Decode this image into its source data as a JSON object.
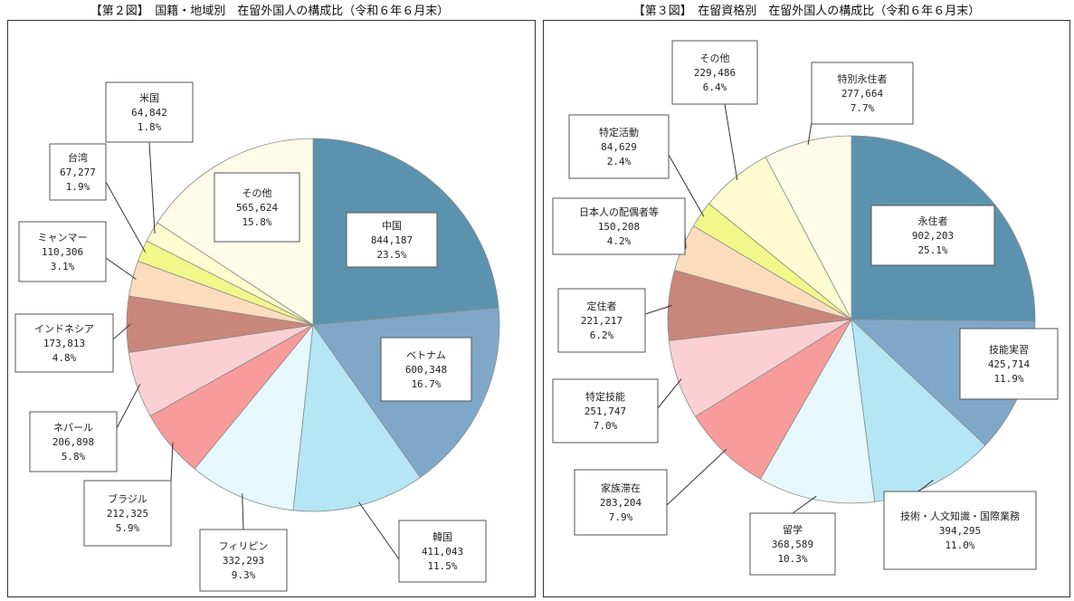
{
  "chart_data": [
    {
      "type": "pie",
      "title": "【第２図】　国籍・地域別　在留外国人の構成比（令和６年６月末）",
      "slices": [
        {
          "label": "中国",
          "value": "844,187",
          "percent": "23.5%",
          "color": "#5b93ae"
        },
        {
          "label": "ベトナム",
          "value": "600,348",
          "percent": "16.7%",
          "color": "#7fa8c8"
        },
        {
          "label": "韓国",
          "value": "411,043",
          "percent": "11.5%",
          "color": "#b4e6f5"
        },
        {
          "label": "フィリピン",
          "value": "332,293",
          "percent": "9.3%",
          "color": "#e6f8fc"
        },
        {
          "label": "ブラジル",
          "value": "212,325",
          "percent": "5.9%",
          "color": "#f89b9b"
        },
        {
          "label": "ネパール",
          "value": "206,898",
          "percent": "5.8%",
          "color": "#fbd0d2"
        },
        {
          "label": "インドネシア",
          "value": "173,813",
          "percent": "4.8%",
          "color": "#c8877a"
        },
        {
          "label": "ミャンマー",
          "value": "110,306",
          "percent": "3.1%",
          "color": "#fbdcbc"
        },
        {
          "label": "台湾",
          "value": "67,277",
          "percent": "1.9%",
          "color": "#f2f789"
        },
        {
          "label": "米国",
          "value": "64,842",
          "percent": "1.8%",
          "color": "#fdfbcf"
        },
        {
          "label": "その他",
          "value": "565,624",
          "percent": "15.8%",
          "color": "#fffbe8"
        }
      ]
    },
    {
      "type": "pie",
      "title": "【第３図】　在留資格別　在留外国人の構成比（令和６年６月末）",
      "slices": [
        {
          "label": "永住者",
          "value": "902,203",
          "percent": "25.1%",
          "color": "#5b93ae"
        },
        {
          "label": "技能実習",
          "value": "425,714",
          "percent": "11.9%",
          "color": "#7fa8c8"
        },
        {
          "label": "技術・人文知識・国際業務",
          "value": "394,295",
          "percent": "11.0%",
          "color": "#b4e6f5"
        },
        {
          "label": "留学",
          "value": "368,589",
          "percent": "10.3%",
          "color": "#e6f8fc"
        },
        {
          "label": "家族滞在",
          "value": "283,204",
          "percent": "7.9%",
          "color": "#f89b9b"
        },
        {
          "label": "特定技能",
          "value": "251,747",
          "percent": "7.0%",
          "color": "#fbd0d2"
        },
        {
          "label": "定住者",
          "value": "221,217",
          "percent": "6.2%",
          "color": "#c8877a"
        },
        {
          "label": "日本人の配偶者等",
          "value": "150,208",
          "percent": "4.2%",
          "color": "#fbdcbc"
        },
        {
          "label": "特定活動",
          "value": "84,629",
          "percent": "2.4%",
          "color": "#f2f789"
        },
        {
          "label": "その他",
          "value": "229,486",
          "percent": "6.4%",
          "color": "#fdfbcf"
        },
        {
          "label": "特別永住者",
          "value": "277,664",
          "percent": "7.7%",
          "color": "#fffbe8"
        }
      ]
    }
  ]
}
